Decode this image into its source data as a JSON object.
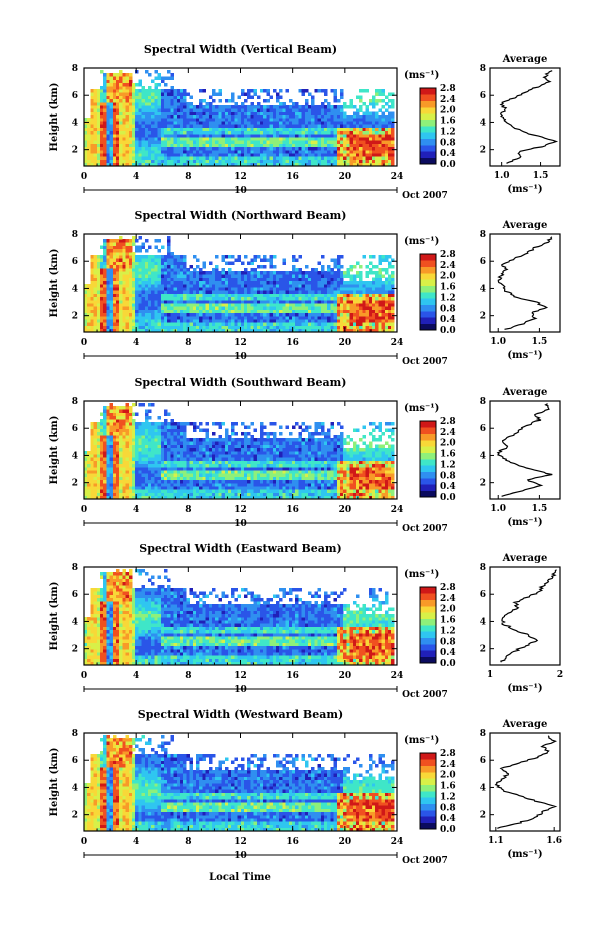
{
  "figure": {
    "xlabel": "Local Time",
    "colorbar_unit": "(ms⁻¹)",
    "colorbar_ticks": [
      "0.0",
      "0.4",
      "0.8",
      "1.2",
      "1.6",
      "2.0",
      "2.4",
      "2.8"
    ],
    "colorbar_range": [
      0.0,
      2.8
    ],
    "colormap": [
      "#0b0b5e",
      "#2020b8",
      "#2a55e8",
      "#2f8ff0",
      "#2fc6f0",
      "#3fe6c8",
      "#8ef07a",
      "#d8f048",
      "#f8d838",
      "#f89a28",
      "#f05020",
      "#d01818"
    ],
    "date_label": "Oct 2007",
    "day_label": "10",
    "avg_title": "Average",
    "avg_xlabel": "(ms⁻¹)"
  },
  "chart_data": [
    {
      "type": "heatmap",
      "title": "Spectral Width (Vertical Beam)",
      "ylabel": "Height (km)",
      "xlim": [
        0,
        24
      ],
      "xticks": [
        0,
        4,
        8,
        12,
        16,
        20,
        24
      ],
      "ylim": [
        0.8,
        8.0
      ],
      "yticks": [
        2,
        4,
        6,
        8
      ],
      "colorbar": {
        "label": "(ms⁻¹)",
        "range": [
          0.0,
          2.8
        ]
      },
      "profile": {
        "title": "Average",
        "xlabel": "(ms⁻¹)",
        "xlim": [
          0.85,
          1.75
        ],
        "xticks": [
          1.0,
          1.5
        ],
        "xtick_labels": [
          "1.0",
          "1.5"
        ],
        "heights": [
          1.0,
          1.4,
          1.8,
          2.2,
          2.6,
          3.0,
          3.4,
          3.8,
          4.2,
          4.6,
          5.0,
          5.4,
          5.8,
          6.2,
          6.6,
          7.0,
          7.4,
          7.8
        ],
        "values": [
          1.05,
          1.25,
          1.2,
          1.5,
          1.7,
          1.45,
          1.25,
          1.1,
          1.05,
          1.0,
          1.05,
          1.0,
          1.15,
          1.3,
          1.45,
          1.6,
          1.55,
          1.65
        ]
      }
    },
    {
      "type": "heatmap",
      "title": "Spectral Width (Northward Beam)",
      "ylabel": "Height (km)",
      "xlim": [
        0,
        24
      ],
      "xticks": [
        0,
        4,
        8,
        12,
        16,
        20,
        24
      ],
      "ylim": [
        0.8,
        8.0
      ],
      "yticks": [
        2,
        4,
        6,
        8
      ],
      "colorbar": {
        "label": "(ms⁻¹)",
        "range": [
          0.0,
          2.8
        ]
      },
      "profile": {
        "title": "Average",
        "xlabel": "(ms⁻¹)",
        "xlim": [
          0.9,
          1.75
        ],
        "xticks": [
          1.0,
          1.5
        ],
        "xtick_labels": [
          "1.0",
          "1.5"
        ],
        "heights": [
          1.0,
          1.4,
          1.8,
          2.2,
          2.6,
          3.0,
          3.4,
          3.8,
          4.2,
          4.6,
          5.0,
          5.4,
          5.8,
          6.2,
          6.6,
          7.0,
          7.4,
          7.8
        ],
        "values": [
          1.1,
          1.3,
          1.45,
          1.4,
          1.6,
          1.45,
          1.2,
          1.1,
          1.05,
          1.0,
          1.05,
          1.1,
          1.05,
          1.2,
          1.35,
          1.45,
          1.6,
          1.65
        ]
      }
    },
    {
      "type": "heatmap",
      "title": "Spectral Width (Southward Beam)",
      "ylabel": "Height (km)",
      "xlim": [
        0,
        24
      ],
      "xticks": [
        0,
        4,
        8,
        12,
        16,
        20,
        24
      ],
      "ylim": [
        0.8,
        8.0
      ],
      "yticks": [
        2,
        4,
        6,
        8
      ],
      "colorbar": {
        "label": "(ms⁻¹)",
        "range": [
          0.0,
          2.8
        ]
      },
      "profile": {
        "title": "Average",
        "xlabel": "(ms⁻¹)",
        "xlim": [
          0.9,
          1.75
        ],
        "xticks": [
          1.0,
          1.5
        ],
        "xtick_labels": [
          "1.0",
          "1.5"
        ],
        "heights": [
          1.0,
          1.4,
          1.8,
          2.2,
          2.6,
          3.0,
          3.4,
          3.8,
          4.2,
          4.6,
          5.0,
          5.4,
          5.8,
          6.2,
          6.6,
          7.0,
          7.4,
          7.8
        ],
        "values": [
          1.05,
          1.3,
          1.5,
          1.35,
          1.65,
          1.4,
          1.2,
          1.05,
          1.0,
          1.1,
          1.05,
          1.15,
          1.25,
          1.35,
          1.5,
          1.45,
          1.6,
          1.6
        ]
      }
    },
    {
      "type": "heatmap",
      "title": "Spectral Width (Eastward Beam)",
      "ylabel": "Height (km)",
      "xlim": [
        0,
        24
      ],
      "xticks": [
        0,
        4,
        8,
        12,
        16,
        20,
        24
      ],
      "ylim": [
        0.8,
        8.0
      ],
      "yticks": [
        2,
        4,
        6,
        8
      ],
      "colorbar": {
        "label": "(ms⁻¹)",
        "range": [
          0.0,
          2.8
        ]
      },
      "profile": {
        "title": "Average",
        "xlabel": "(ms⁻¹)",
        "xlim": [
          1.0,
          2.0
        ],
        "xticks": [
          1,
          2
        ],
        "xtick_labels": [
          "1",
          "2"
        ],
        "heights": [
          1.0,
          1.4,
          1.8,
          2.2,
          2.6,
          3.0,
          3.4,
          3.8,
          4.2,
          4.6,
          5.0,
          5.4,
          5.8,
          6.2,
          6.6,
          7.0,
          7.4,
          7.8
        ],
        "values": [
          1.15,
          1.25,
          1.35,
          1.5,
          1.65,
          1.55,
          1.35,
          1.2,
          1.15,
          1.25,
          1.4,
          1.35,
          1.55,
          1.7,
          1.75,
          1.85,
          1.9,
          1.95
        ]
      }
    },
    {
      "type": "heatmap",
      "title": "Spectral Width (Westward Beam)",
      "ylabel": "Height (km)",
      "xlim": [
        0,
        24
      ],
      "xticks": [
        0,
        4,
        8,
        12,
        16,
        20,
        24
      ],
      "ylim": [
        0.8,
        8.0
      ],
      "yticks": [
        2,
        4,
        6,
        8
      ],
      "colorbar": {
        "label": "(ms⁻¹)",
        "range": [
          0.0,
          2.8
        ]
      },
      "profile": {
        "title": "Average",
        "xlabel": "(ms⁻¹)",
        "xlim": [
          1.05,
          1.65
        ],
        "xticks": [
          1.1,
          1.6
        ],
        "xtick_labels": [
          "1.1",
          "1.6"
        ],
        "heights": [
          1.0,
          1.4,
          1.8,
          2.2,
          2.6,
          3.0,
          3.4,
          3.8,
          4.2,
          4.6,
          5.0,
          5.4,
          5.8,
          6.2,
          6.6,
          7.0,
          7.4,
          7.8
        ],
        "values": [
          1.1,
          1.3,
          1.45,
          1.5,
          1.6,
          1.45,
          1.3,
          1.15,
          1.1,
          1.15,
          1.2,
          1.15,
          1.3,
          1.45,
          1.55,
          1.5,
          1.6,
          1.55
        ]
      }
    }
  ]
}
